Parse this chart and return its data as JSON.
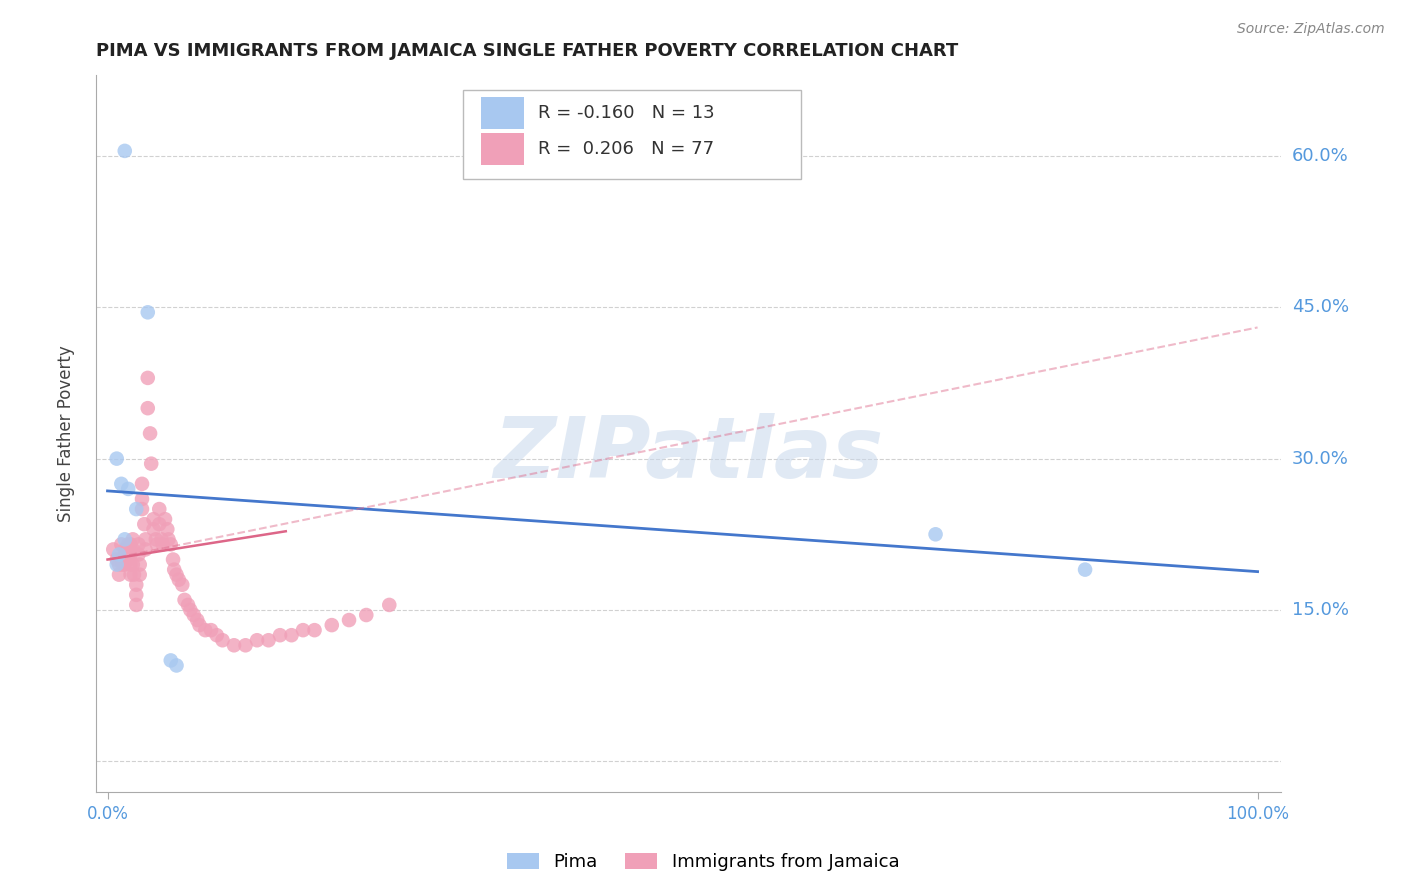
{
  "title": "PIMA VS IMMIGRANTS FROM JAMAICA SINGLE FATHER POVERTY CORRELATION CHART",
  "source": "Source: ZipAtlas.com",
  "ylabel": "Single Father Poverty",
  "watermark": "ZIPatlas",
  "legend": {
    "pima_label": "Pima",
    "jamaica_label": "Immigrants from Jamaica",
    "pima_R": "-0.160",
    "pima_N": "13",
    "jamaica_R": "0.206",
    "jamaica_N": "77"
  },
  "yticks": [
    0.0,
    0.15,
    0.3,
    0.45,
    0.6
  ],
  "ytick_labels": [
    "",
    "15.0%",
    "30.0%",
    "45.0%",
    "60.0%"
  ],
  "pima_color": "#a8c8f0",
  "jamaica_color": "#f0a0b8",
  "pima_line_color": "#4477cc",
  "jamaica_line_color": "#dd6688",
  "pima_scatter_x": [
    0.015,
    0.035,
    0.008,
    0.012,
    0.018,
    0.025,
    0.015,
    0.01,
    0.008,
    0.72,
    0.85,
    0.055,
    0.06
  ],
  "pima_scatter_y": [
    0.605,
    0.445,
    0.3,
    0.275,
    0.27,
    0.25,
    0.22,
    0.205,
    0.195,
    0.225,
    0.19,
    0.1,
    0.095
  ],
  "jamaica_scatter_x": [
    0.005,
    0.008,
    0.01,
    0.01,
    0.012,
    0.012,
    0.013,
    0.015,
    0.015,
    0.015,
    0.017,
    0.018,
    0.018,
    0.02,
    0.02,
    0.02,
    0.02,
    0.022,
    0.022,
    0.022,
    0.023,
    0.025,
    0.025,
    0.025,
    0.027,
    0.027,
    0.028,
    0.028,
    0.03,
    0.03,
    0.03,
    0.032,
    0.033,
    0.033,
    0.035,
    0.035,
    0.037,
    0.038,
    0.04,
    0.04,
    0.042,
    0.043,
    0.045,
    0.045,
    0.047,
    0.048,
    0.05,
    0.052,
    0.053,
    0.055,
    0.057,
    0.058,
    0.06,
    0.062,
    0.065,
    0.067,
    0.07,
    0.072,
    0.075,
    0.078,
    0.08,
    0.085,
    0.09,
    0.095,
    0.1,
    0.11,
    0.12,
    0.13,
    0.14,
    0.15,
    0.16,
    0.17,
    0.18,
    0.195,
    0.21,
    0.225,
    0.245
  ],
  "jamaica_scatter_y": [
    0.21,
    0.2,
    0.195,
    0.185,
    0.215,
    0.2,
    0.195,
    0.21,
    0.205,
    0.195,
    0.21,
    0.215,
    0.2,
    0.215,
    0.205,
    0.195,
    0.185,
    0.22,
    0.21,
    0.195,
    0.185,
    0.175,
    0.165,
    0.155,
    0.215,
    0.205,
    0.195,
    0.185,
    0.275,
    0.26,
    0.25,
    0.235,
    0.22,
    0.21,
    0.38,
    0.35,
    0.325,
    0.295,
    0.24,
    0.23,
    0.22,
    0.215,
    0.25,
    0.235,
    0.22,
    0.215,
    0.24,
    0.23,
    0.22,
    0.215,
    0.2,
    0.19,
    0.185,
    0.18,
    0.175,
    0.16,
    0.155,
    0.15,
    0.145,
    0.14,
    0.135,
    0.13,
    0.13,
    0.125,
    0.12,
    0.115,
    0.115,
    0.12,
    0.12,
    0.125,
    0.125,
    0.13,
    0.13,
    0.135,
    0.14,
    0.145,
    0.155
  ],
  "pima_trend_x": [
    0.0,
    1.0
  ],
  "pima_trend_y": [
    0.268,
    0.188
  ],
  "jamaica_solid_trend_x": [
    0.0,
    0.155
  ],
  "jamaica_solid_trend_y": [
    0.2,
    0.228
  ],
  "jamaica_dashed_trend_x": [
    0.0,
    1.0
  ],
  "jamaica_dashed_trend_y": [
    0.2,
    0.43
  ],
  "bg_color": "#ffffff",
  "grid_color": "#cccccc",
  "axis_color": "#aaaaaa",
  "tick_color": "#5599dd",
  "xlim": [
    -0.01,
    1.02
  ],
  "ylim": [
    -0.03,
    0.68
  ]
}
